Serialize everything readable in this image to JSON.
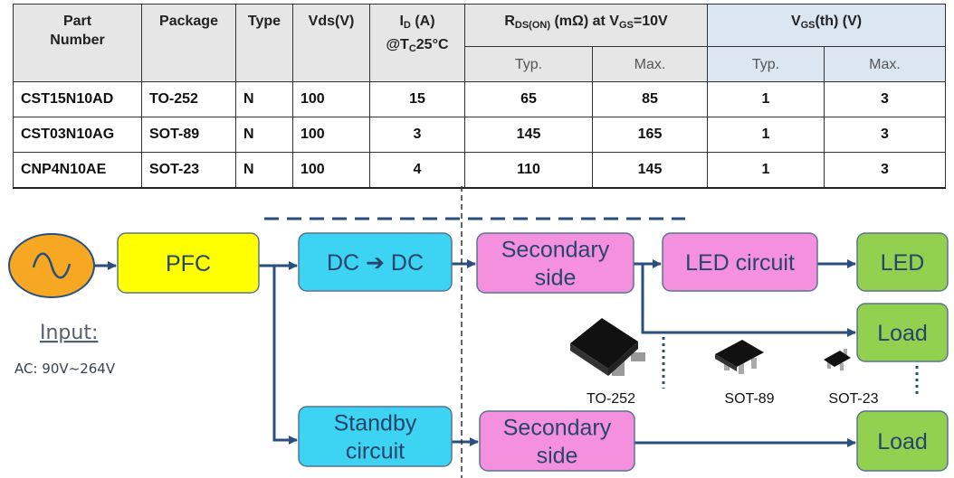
{
  "table": {
    "headers": [
      {
        "lines": [
          [
            "Part"
          ],
          [
            "Number"
          ]
        ]
      },
      {
        "lines": [
          [
            "Package"
          ]
        ]
      },
      {
        "lines": [
          [
            "Type"
          ]
        ]
      },
      {
        "lines": [
          [
            "Vds(V)"
          ]
        ]
      },
      {
        "lines": [
          [
            "I",
            {
              "text": "D",
              "sub": true
            },
            " (A)"
          ],
          [
            "@T",
            {
              "text": "C",
              "sub": true
            },
            "25°C"
          ]
        ]
      },
      {
        "lines": [
          [
            "R",
            {
              "text": "DS(ON)",
              "sub": true
            },
            " (mΩ) at V",
            {
              "text": "GS",
              "sub": true
            },
            "=10V"
          ]
        ]
      },
      {
        "lines": [
          [
            "V",
            {
              "text": "GS",
              "sub": true
            },
            "(th) (V)"
          ]
        ]
      }
    ],
    "subheaders": [
      "Typ.",
      "Max.",
      "Typ.",
      "Max."
    ],
    "rows": [
      [
        "CST15N10AD",
        "TO-252",
        "N",
        100,
        15,
        65,
        85,
        1,
        3
      ],
      [
        "CST03N10AG",
        "SOT-89",
        "N",
        100,
        3,
        145,
        165,
        1,
        3
      ],
      [
        "CNP4N10AE",
        "SOT-23",
        "N",
        100,
        4,
        110,
        145,
        1,
        3
      ]
    ]
  },
  "diagram": {
    "nodes": [
      {
        "lines": [
          "PFC"
        ]
      },
      {
        "lines": [
          "DC ➔ DC"
        ]
      },
      {
        "lines": [
          "Secondary",
          "side"
        ]
      },
      {
        "lines": [
          "LED circuit"
        ]
      },
      {
        "lines": [
          "LED"
        ]
      },
      {
        "lines": [
          "Load"
        ]
      },
      {
        "lines": [
          "Standby",
          "circuit"
        ]
      },
      {
        "lines": [
          "Secondary",
          "side"
        ]
      },
      {
        "lines": [
          "Load"
        ]
      }
    ],
    "input_label": "Input:",
    "input_range": "AC: 90V~264V",
    "packages": [
      "TO-252",
      "SOT-89",
      "SOT-23"
    ]
  }
}
